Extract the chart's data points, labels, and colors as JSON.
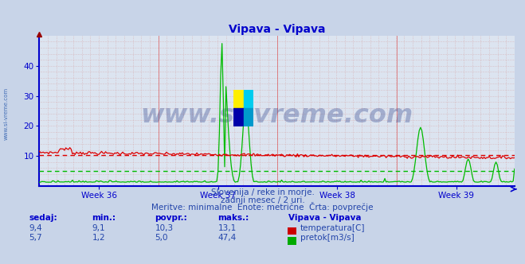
{
  "title": "Vipava - Vipava",
  "title_color": "#0000cc",
  "bg_color": "#c8d4e8",
  "plot_bg_color": "#dce4f0",
  "grid_h_color": "#e08080",
  "grid_v_color": "#e08080",
  "watermark_text": "www.si-vreme.com",
  "watermark_color": "#1a3080",
  "watermark_alpha": 0.3,
  "watermark_fontsize": 26,
  "xlabel_weeks": [
    "Week 36",
    "Week 37",
    "Week 38",
    "Week 39"
  ],
  "ylim": [
    0,
    50
  ],
  "yticks": [
    10,
    20,
    30,
    40
  ],
  "n_points": 360,
  "temp_color": "#dd0000",
  "flow_color": "#00bb00",
  "temp_avg_value": 10.3,
  "flow_avg_value": 5.0,
  "axis_color": "#0000cc",
  "tick_color": "#0000cc",
  "subtitle1": "Slovenija / reke in morje.",
  "subtitle2": "zadnji mesec / 2 uri.",
  "subtitle3": "Meritve: minimalne  Enote: metrične  Črta: povprečje",
  "subtitle_color": "#2244aa",
  "table_label_color": "#0000cc",
  "table_value_color": "#2244aa",
  "temp_sedaj": "9,4",
  "temp_min": "9,1",
  "temp_povpr": "10,3",
  "temp_maks": "13,1",
  "flow_sedaj": "5,7",
  "flow_min": "1,2",
  "flow_povpr": "5,0",
  "flow_maks": "47,4",
  "logo_colors": [
    "#ffee00",
    "#00ccee",
    "#0000cc",
    "#0099cc"
  ],
  "sidebar_text": "www.si-vreme.com",
  "sidebar_color": "#2255aa"
}
